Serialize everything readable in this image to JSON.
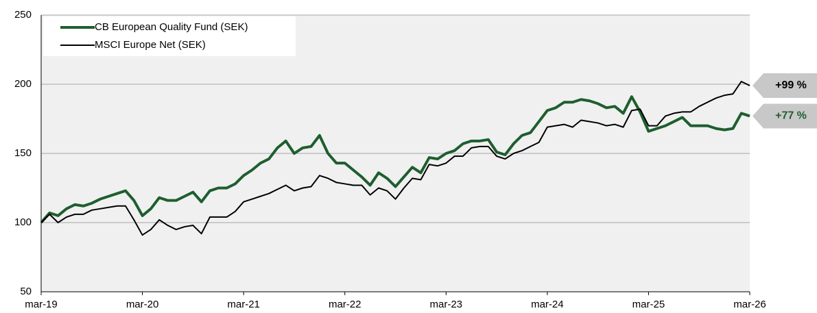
{
  "chart_data": {
    "type": "line",
    "categories": [
      "mar-19",
      null,
      null,
      null,
      null,
      null,
      null,
      null,
      null,
      null,
      null,
      null,
      "mar-20",
      null,
      null,
      null,
      null,
      null,
      null,
      null,
      null,
      null,
      null,
      null,
      "mar-21",
      null,
      null,
      null,
      null,
      null,
      null,
      null,
      null,
      null,
      null,
      null,
      "mar-22",
      null,
      null,
      null,
      null,
      null,
      null,
      null,
      null,
      null,
      null,
      null,
      "mar-23",
      null,
      null,
      null,
      null,
      null,
      null,
      null,
      null,
      null,
      null,
      null,
      "mar-24",
      null,
      null,
      null,
      null,
      null,
      null,
      null,
      null,
      null,
      null,
      null,
      "mar-25",
      null,
      null,
      null,
      null,
      null,
      null,
      null,
      null,
      null,
      null,
      null,
      "mar-26"
    ],
    "series": [
      {
        "name": "CB European Quality Fund (SEK)",
        "color": "#1e5e2f",
        "end_label": "+77 %",
        "values": [
          100,
          107,
          105,
          110,
          113,
          112,
          114,
          117,
          119,
          121,
          123,
          116,
          105,
          110,
          118,
          116,
          116,
          119,
          122,
          115,
          123,
          125,
          125,
          128,
          134,
          138,
          143,
          146,
          154,
          159,
          150,
          154,
          155,
          163,
          150,
          143,
          143,
          138,
          133,
          127,
          136,
          132,
          126,
          133,
          140,
          136,
          147,
          146,
          150,
          152,
          157,
          159,
          159,
          160,
          151,
          149,
          157,
          163,
          165,
          173,
          181,
          183,
          187,
          187,
          189,
          188,
          186,
          183,
          184,
          179,
          191,
          180,
          166,
          168,
          170,
          173,
          176,
          170,
          170,
          170,
          168,
          167,
          168,
          179,
          177
        ]
      },
      {
        "name": "MSCI Europe Net (SEK)",
        "color": "#000000",
        "end_label": "+99 %",
        "values": [
          100,
          106,
          100,
          104,
          106,
          106,
          109,
          110,
          111,
          112,
          112,
          102,
          91,
          95,
          102,
          98,
          95,
          97,
          98,
          92,
          104,
          104,
          104,
          108,
          115,
          117,
          119,
          121,
          124,
          127,
          123,
          125,
          126,
          134,
          132,
          129,
          128,
          127,
          127,
          120,
          125,
          123,
          117,
          125,
          132,
          131,
          142,
          141,
          143,
          148,
          148,
          154,
          155,
          155,
          148,
          146,
          150,
          152,
          155,
          158,
          169,
          170,
          171,
          169,
          174,
          173,
          172,
          170,
          171,
          169,
          181,
          182,
          170,
          170,
          177,
          179,
          180,
          180,
          184,
          187,
          190,
          192,
          193,
          202,
          199
        ]
      }
    ],
    "ylim": [
      50,
      250
    ],
    "yticks": [
      50,
      100,
      150,
      200,
      250
    ],
    "grid": true,
    "legend": "upper left"
  }
}
